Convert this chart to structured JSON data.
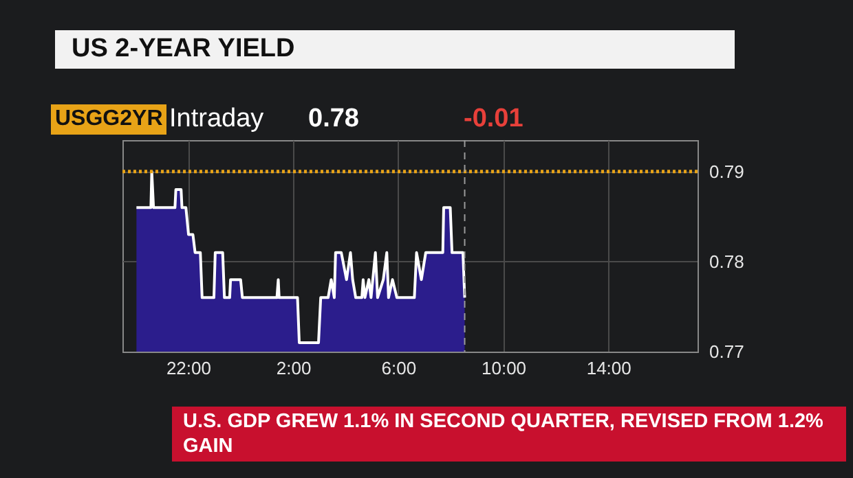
{
  "chart_data": {
    "type": "area",
    "title": "US 2-YEAR YIELD",
    "annotations": [
      "USGG2YR",
      "Intraday",
      "0.78",
      "-0.01",
      "U.S. GDP GREW 1.1% IN SECOND QUARTER, REVISED FROM 1.2% GAIN"
    ],
    "x": [
      "--08-25T20:02",
      "--08-25T20:35",
      "--08-25T20:37",
      "--08-25T20:41",
      "--08-25T21:30",
      "--08-25T21:32",
      "--08-25T21:44",
      "--08-25T21:46",
      "--08-25T21:55",
      "--08-25T22:01",
      "--08-25T22:11",
      "--08-25T22:16",
      "--08-25T22:28",
      "--08-25T22:32",
      "--08-25T22:59",
      "--08-25T23:02",
      "--08-25T23:19",
      "--08-25T23:23",
      "--08-25T23:35",
      "--08-25T23:37",
      "--08-26T00:00",
      "--08-26T00:04",
      "--08-26T01:23",
      "--08-26T01:26",
      "--08-26T01:28",
      "--08-26T02:10",
      "--08-26T02:14",
      "--08-26T02:58",
      "--08-26T03:03",
      "--08-26T03:20",
      "--08-26T03:27",
      "--08-26T03:34",
      "--08-26T03:37",
      "--08-26T03:50",
      "--08-26T04:02",
      "--08-26T04:11",
      "--08-26T04:16",
      "--08-26T04:23",
      "--08-26T04:37",
      "--08-26T04:40",
      "--08-26T04:44",
      "--08-26T04:53",
      "--08-26T04:58",
      "--08-26T05:08",
      "--08-26T05:13",
      "--08-26T05:26",
      "--08-26T05:34",
      "--08-26T05:38",
      "--08-26T05:47",
      "--08-26T05:57",
      "--08-26T06:37",
      "--08-26T06:42",
      "--08-26T06:53",
      "--08-26T07:03",
      "--08-26T07:14",
      "--08-26T07:42",
      "--08-26T07:44",
      "--08-26T07:59",
      "--08-26T08:03",
      "--08-26T08:28",
      "--08-26T08:32"
    ],
    "series": [
      {
        "color": "#2b1d8c",
        "values": [
          0.786,
          0.786,
          0.79,
          0.786,
          0.786,
          0.788,
          0.788,
          0.786,
          0.786,
          0.783,
          0.783,
          0.781,
          0.781,
          0.776,
          0.776,
          0.781,
          0.781,
          0.776,
          0.776,
          0.778,
          0.778,
          0.776,
          0.776,
          0.778,
          0.776,
          0.776,
          0.771,
          0.771,
          0.776,
          0.776,
          0.778,
          0.776,
          0.781,
          0.781,
          0.778,
          0.781,
          0.778,
          0.776,
          0.776,
          0.778,
          0.776,
          0.778,
          0.776,
          0.781,
          0.776,
          0.778,
          0.781,
          0.776,
          0.778,
          0.776,
          0.776,
          0.781,
          0.778,
          0.781,
          0.781,
          0.781,
          0.786,
          0.786,
          0.781,
          0.781,
          0.776
        ]
      }
    ],
    "xlim": [
      "--08-25T19:30",
      "--08-26T17:24"
    ],
    "xticks": [
      {
        "value": "--08-25T22:00",
        "label": "22:00"
      },
      {
        "value": "--08-26T02:00",
        "label": "2:00"
      },
      {
        "value": "--08-26T06:00",
        "label": "6:00"
      },
      {
        "value": "--08-26T10:00",
        "label": "10:00"
      },
      {
        "value": "--08-26T14:00",
        "label": "14:00"
      }
    ],
    "ylim": [
      0.77,
      0.7935
    ],
    "yticks": [
      0.77,
      0.78,
      0.79
    ],
    "grid": true,
    "ref_lines": [
      {
        "axis": "y",
        "value": 0.79,
        "color": "#e8a317",
        "line_style": "dotted"
      },
      {
        "axis": "x",
        "value": "--08-26T08:32",
        "color": "#9a9a9a",
        "line_style": "dashed"
      }
    ]
  }
}
